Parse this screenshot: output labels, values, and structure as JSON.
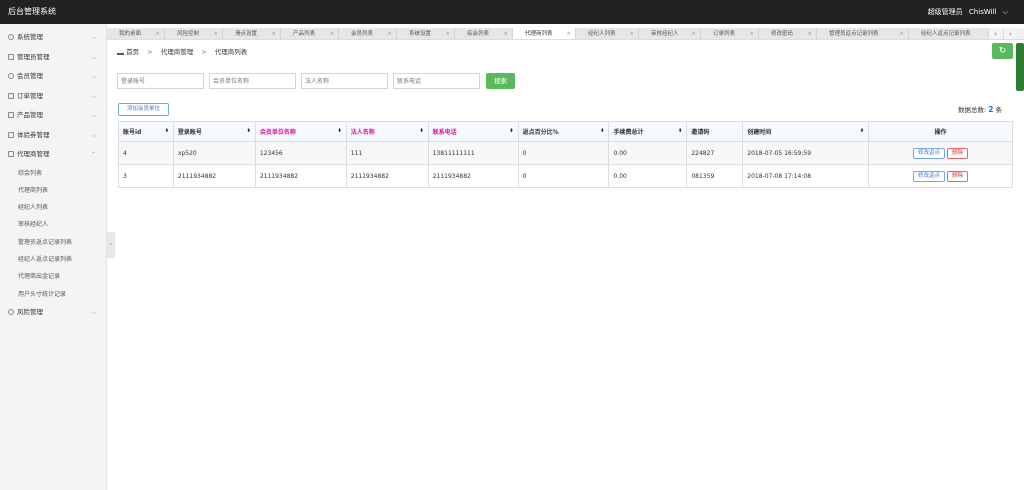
{
  "app": {
    "title": "后台管理系统",
    "role": "超级管理员",
    "user": "ChisWill"
  },
  "sidebar": {
    "groups_top": [
      {
        "label": "系统管理"
      },
      {
        "label": "管理员管理"
      },
      {
        "label": "会员管理"
      },
      {
        "label": "订单管理"
      },
      {
        "label": "产品管理"
      },
      {
        "label": "体验券管理"
      },
      {
        "label": "代理商管理"
      }
    ],
    "sub_items": [
      {
        "label": "综会列表"
      },
      {
        "label": "代理商列表"
      },
      {
        "label": "经纪人列表"
      },
      {
        "label": "审核经纪人"
      },
      {
        "label": "管理员返点记录列表"
      },
      {
        "label": "经纪人返点记录列表"
      },
      {
        "label": "代理商出金记录"
      },
      {
        "label": "用户头寸统计记录"
      }
    ],
    "group_bottom": {
      "label": "风险管理"
    }
  },
  "tabs": [
    {
      "label": "我的桌面"
    },
    {
      "label": "风险控制"
    },
    {
      "label": "滑点设置"
    },
    {
      "label": "产品列表"
    },
    {
      "label": "会员列表"
    },
    {
      "label": "系统设置"
    },
    {
      "label": "综会列表"
    },
    {
      "label": "代理商列表"
    },
    {
      "label": "经纪人列表"
    },
    {
      "label": "审核经纪人"
    },
    {
      "label": "订单列表"
    },
    {
      "label": "修改密码"
    },
    {
      "label": "管理员返点记录列表"
    },
    {
      "label": "经纪人返点记录列表"
    }
  ],
  "breadcrumb": {
    "home": "首页",
    "level1": "代理商管理",
    "level2": "代理商列表"
  },
  "search": {
    "account_placeholder": "登录账号",
    "company_placeholder": "会员单位名称",
    "legal_placeholder": "法人名称",
    "phone_placeholder": "联系电话",
    "button": "搜索"
  },
  "actions": {
    "add_label": "添加会员单位",
    "total_label": "数据总数:",
    "total_count": "2",
    "total_unit": "条"
  },
  "table": {
    "headers": {
      "id": "账号id",
      "account": "登录账号",
      "company": "会员单位名称",
      "legal": "法人名称",
      "phone": "联系电话",
      "rebate": "返点百分比%",
      "fee": "手续费总计",
      "invite": "邀请码",
      "created": "创建时间",
      "ops": "操作"
    },
    "rows": [
      {
        "id": "4",
        "account": "xp520",
        "company": "123456",
        "legal": "111",
        "phone": "13811111111",
        "rebate": "0",
        "fee": "0.00",
        "invite": "224827",
        "created": "2018-07-05 16:59:59",
        "edit": "修改返点",
        "del": "删除"
      },
      {
        "id": "3",
        "account": "2111934882",
        "company": "2111934882",
        "legal": "2111934882",
        "phone": "2111934882",
        "rebate": "0",
        "fee": "0.00",
        "invite": "081359",
        "created": "2018-07-08 17:14:08",
        "edit": "修改返点",
        "del": "删除"
      }
    ]
  }
}
